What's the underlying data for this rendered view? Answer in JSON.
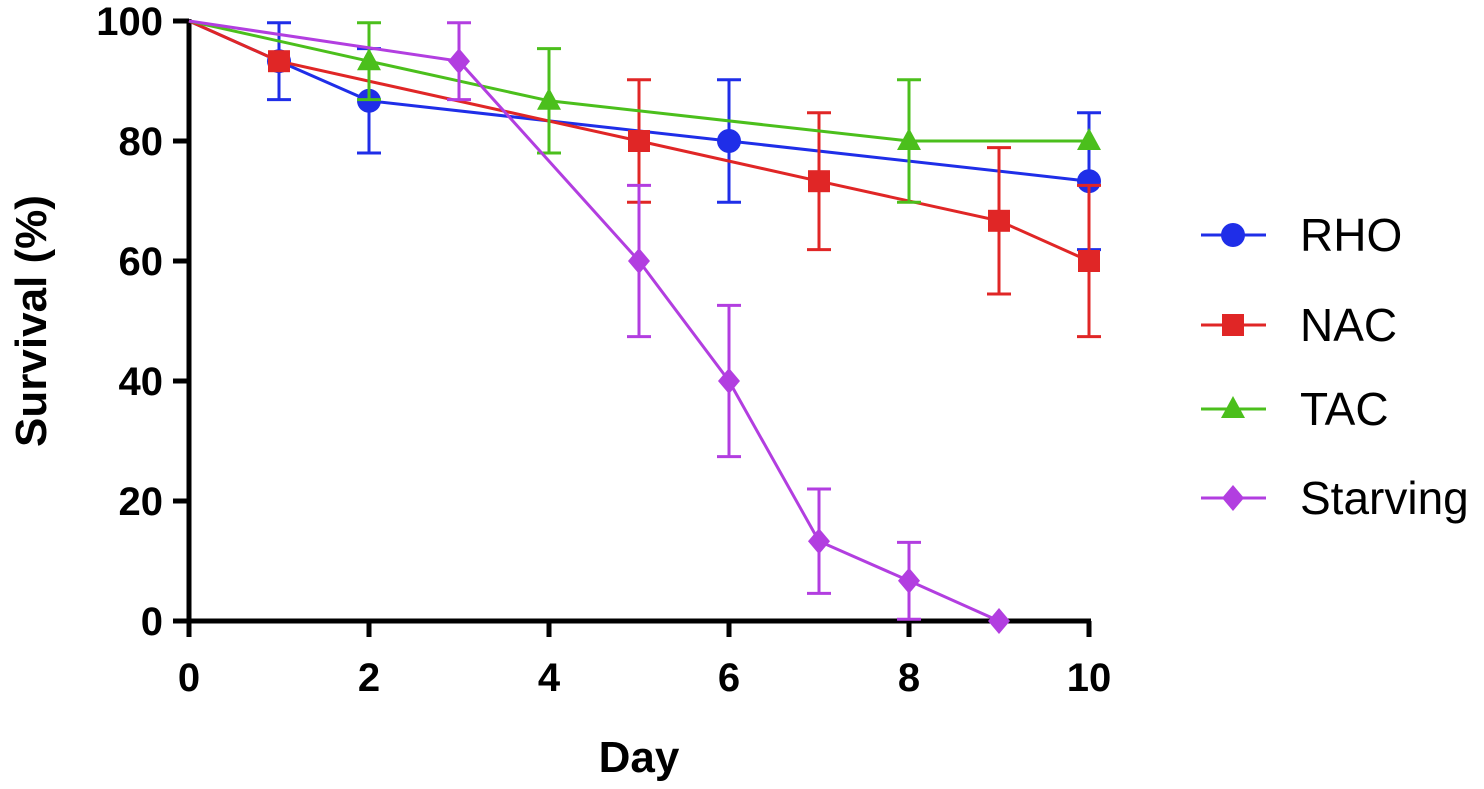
{
  "chart_data": {
    "type": "line",
    "title": "",
    "xlabel": "Day",
    "ylabel": "Survival (%)",
    "xlim": [
      0,
      10
    ],
    "ylim": [
      0,
      100
    ],
    "xticks": [
      "0",
      "2",
      "4",
      "6",
      "8",
      "10"
    ],
    "yticks": [
      "0",
      "20",
      "40",
      "60",
      "80",
      "100"
    ],
    "legend_position": "right",
    "series": [
      {
        "name": "RHO",
        "color": "#1f2ee8",
        "marker": "circle",
        "points": [
          {
            "x": 0,
            "y": 100,
            "err": null
          },
          {
            "x": 1,
            "y": 93.3,
            "err": 6.4
          },
          {
            "x": 2,
            "y": 86.7,
            "err": 8.7
          },
          {
            "x": 6,
            "y": 80,
            "err": 10.2
          },
          {
            "x": 10,
            "y": 73.3,
            "err": 11.4
          }
        ]
      },
      {
        "name": "NAC",
        "color": "#e02626",
        "marker": "square",
        "points": [
          {
            "x": 0,
            "y": 100,
            "err": null
          },
          {
            "x": 1,
            "y": 93.3,
            "err": null
          },
          {
            "x": 5,
            "y": 80,
            "err": 10.2
          },
          {
            "x": 7,
            "y": 73.3,
            "err": 11.4
          },
          {
            "x": 9,
            "y": 66.7,
            "err": 12.2
          },
          {
            "x": 10,
            "y": 60,
            "err": 12.6
          }
        ]
      },
      {
        "name": "TAC",
        "color": "#4bbf1c",
        "marker": "triangle",
        "points": [
          {
            "x": 0,
            "y": 100,
            "err": null
          },
          {
            "x": 2,
            "y": 93.3,
            "err": 6.4
          },
          {
            "x": 4,
            "y": 86.7,
            "err": 8.7
          },
          {
            "x": 8,
            "y": 80,
            "err": 10.2
          },
          {
            "x": 10,
            "y": 80,
            "err": null
          }
        ]
      },
      {
        "name": "Starving",
        "color": "#b23ee0",
        "marker": "diamond",
        "points": [
          {
            "x": 0,
            "y": 100,
            "err": null
          },
          {
            "x": 3,
            "y": 93.3,
            "err": 6.4
          },
          {
            "x": 5,
            "y": 60,
            "err": 12.6
          },
          {
            "x": 6,
            "y": 40,
            "err": 12.6
          },
          {
            "x": 7,
            "y": 13.3,
            "err": 8.7
          },
          {
            "x": 8,
            "y": 6.7,
            "err": 6.4
          },
          {
            "x": 9,
            "y": 0,
            "err": null
          }
        ]
      }
    ]
  }
}
